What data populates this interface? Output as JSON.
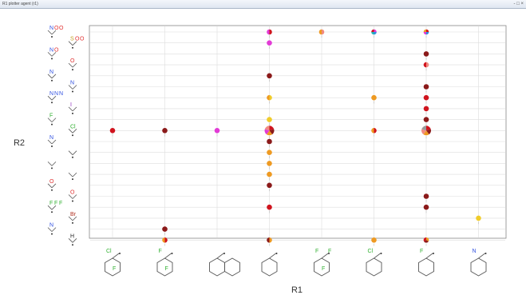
{
  "window": {
    "title": "R1 plotter agent (r1)",
    "controls": "- □ ×"
  },
  "colors": {
    "darkred": "#8b1a1a",
    "red": "#d0141e",
    "orange": "#ee9a22",
    "yellow": "#f0cc2a",
    "magenta": "#e23bd6",
    "salmon": "#f08a80",
    "blue": "#2f8fe0",
    "teal": "#22b4b4",
    "gray": "#9a9a9a",
    "grid": "#dddddd",
    "frame": "#888888"
  },
  "chart_data": {
    "type": "scatter",
    "xlabel": "R1",
    "ylabel": "R2",
    "x_categories": [
      "2-chloro-3-fluorophenyl",
      "2,3-difluorophenyl",
      "1-naphthyl",
      "phenyl",
      "2-(trifluoromethyl)phenyl",
      "2-chlorophenyl",
      "2-fluorophenyl",
      "2-pyridyl"
    ],
    "y_categories": [
      "nitro",
      "methylsulfonyl",
      "methoxy",
      "acetylamino",
      "nitroso",
      "methylamino",
      "azido",
      "iodo",
      "amino",
      "fluoro",
      "chloro",
      "ethyl",
      "dimethylamino",
      "vinyl",
      "formyl",
      "acetyl",
      "trifluoromethyl",
      "bromo",
      "cyano",
      "hydrogen"
    ],
    "structure_labels": {
      "x": [
        [
          "Cl",
          "F"
        ],
        [
          "F",
          "F"
        ],
        [],
        [],
        [
          "F",
          "F",
          "F"
        ],
        [
          "Cl"
        ],
        [
          "F"
        ],
        [
          "N"
        ]
      ],
      "y": [
        [
          "N",
          "O",
          "O"
        ],
        [
          "S",
          "O",
          "O"
        ],
        [
          "N",
          "O"
        ],
        [
          "O"
        ],
        [
          "N"
        ],
        [
          "N"
        ],
        [
          "N",
          "N",
          "N"
        ],
        [
          "I"
        ],
        [
          "F"
        ],
        [
          "Cl"
        ],
        [
          "N"
        ],
        [],
        [],
        [],
        [
          "O"
        ],
        [
          "O"
        ],
        [
          "F",
          "F",
          "F"
        ],
        [
          "Br"
        ],
        [
          "N"
        ],
        [
          "H"
        ]
      ]
    },
    "points": [
      {
        "x": 3,
        "y": 0,
        "colors": [
          "red",
          "magenta"
        ]
      },
      {
        "x": 4,
        "y": 0,
        "colors": [
          "salmon",
          "orange"
        ]
      },
      {
        "x": 5,
        "y": 0,
        "colors": [
          "magenta",
          "blue",
          "teal",
          "red"
        ]
      },
      {
        "x": 6,
        "y": 0,
        "colors": [
          "red",
          "blue",
          "magenta",
          "orange"
        ]
      },
      {
        "x": 3,
        "y": 1,
        "colors": [
          "magenta"
        ]
      },
      {
        "x": 6,
        "y": 2,
        "colors": [
          "darkred"
        ]
      },
      {
        "x": 6,
        "y": 3,
        "colors": [
          "salmon",
          "red"
        ]
      },
      {
        "x": 3,
        "y": 4,
        "colors": [
          "darkred"
        ]
      },
      {
        "x": 6,
        "y": 5,
        "colors": [
          "darkred"
        ]
      },
      {
        "x": 3,
        "y": 6,
        "colors": [
          "yellow",
          "orange"
        ]
      },
      {
        "x": 5,
        "y": 6,
        "colors": [
          "orange"
        ]
      },
      {
        "x": 6,
        "y": 6,
        "colors": [
          "red"
        ]
      },
      {
        "x": 6,
        "y": 7,
        "colors": [
          "red"
        ]
      },
      {
        "x": 3,
        "y": 8,
        "colors": [
          "yellow"
        ]
      },
      {
        "x": 6,
        "y": 8,
        "colors": [
          "darkred"
        ]
      },
      {
        "x": 0,
        "y": 9,
        "colors": [
          "red"
        ]
      },
      {
        "x": 1,
        "y": 9,
        "colors": [
          "darkred"
        ]
      },
      {
        "x": 2,
        "y": 9,
        "colors": [
          "magenta"
        ]
      },
      {
        "x": 3,
        "y": 9,
        "colors": [
          "red",
          "darkred",
          "orange",
          "magenta",
          "salmon"
        ],
        "big": true
      },
      {
        "x": 5,
        "y": 9,
        "colors": [
          "red",
          "orange"
        ]
      },
      {
        "x": 6,
        "y": 9,
        "colors": [
          "red",
          "darkred",
          "orange",
          "salmon",
          "gray"
        ],
        "big": true
      },
      {
        "x": 3,
        "y": 10,
        "colors": [
          "darkred"
        ]
      },
      {
        "x": 3,
        "y": 11,
        "colors": [
          "orange"
        ]
      },
      {
        "x": 3,
        "y": 12,
        "colors": [
          "orange"
        ]
      },
      {
        "x": 3,
        "y": 13,
        "colors": [
          "orange"
        ]
      },
      {
        "x": 3,
        "y": 14,
        "colors": [
          "darkred"
        ]
      },
      {
        "x": 3,
        "y": 16,
        "colors": [
          "red"
        ]
      },
      {
        "x": 6,
        "y": 15,
        "colors": [
          "darkred"
        ]
      },
      {
        "x": 6,
        "y": 16,
        "colors": [
          "darkred"
        ]
      },
      {
        "x": 7,
        "y": 17,
        "colors": [
          "yellow"
        ]
      },
      {
        "x": 1,
        "y": 18,
        "colors": [
          "darkred"
        ]
      },
      {
        "x": 1,
        "y": 19,
        "colors": [
          "red",
          "orange"
        ]
      },
      {
        "x": 3,
        "y": 19,
        "colors": [
          "orange",
          "darkred"
        ]
      },
      {
        "x": 5,
        "y": 19,
        "colors": [
          "orange"
        ]
      },
      {
        "x": 6,
        "y": 19,
        "colors": [
          "orange",
          "darkred",
          "red"
        ]
      }
    ]
  }
}
